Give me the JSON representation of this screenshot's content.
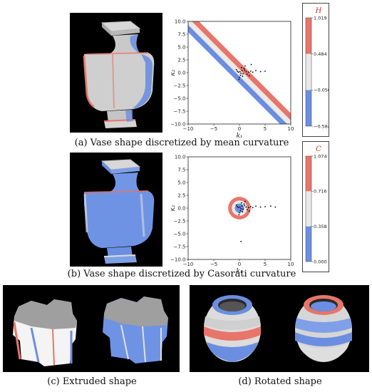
{
  "panels": {
    "a": {
      "caption": "(a)  Vase shape discretized by mean curvature",
      "colorbar": {
        "symbol": "H",
        "ticks": [
          "1.019",
          "0.484",
          "−0.050",
          "−0.584"
        ]
      }
    },
    "b": {
      "caption": "(b)  Vase shape discretized by Casorati curvature",
      "colorbar": {
        "symbol": "C",
        "ticks": [
          "1.074",
          "0.716",
          "0.358",
          "0.000"
        ]
      }
    },
    "c": {
      "caption": "(c) Extruded shape"
    },
    "d": {
      "caption": "(d) Rotated shape"
    }
  },
  "colors": {
    "red": "#e8756a",
    "white": "#e9e9e9",
    "blue": "#6b8ee0",
    "gray": "#9a9a9a"
  },
  "axes": {
    "xlabel": "k₁",
    "ylabel": "k₂",
    "xticks": [
      "−10",
      "−5",
      "0",
      "5",
      "10"
    ],
    "yticks": [
      "10.0",
      "7.5",
      "5.0",
      "2.5",
      "0.0",
      "−2.5",
      "−5.0",
      "−7.5",
      "−10.0"
    ]
  },
  "chart_data": [
    {
      "type": "scatter",
      "panel": "a",
      "xlabel": "k₁",
      "ylabel": "k₂",
      "xlim": [
        -10,
        10
      ],
      "ylim": [
        -10,
        10
      ],
      "regions": [
        {
          "name": "red band",
          "color": "#e8756a",
          "rule": "k1 + k2 offset above diagonal"
        },
        {
          "name": "white band",
          "color": "#e9e9e9",
          "rule": "diagonal k1 + k2 ≈ 0"
        },
        {
          "name": "blue band",
          "color": "#6b8ee0",
          "rule": "k1 + k2 offset below diagonal"
        }
      ],
      "points": [
        [
          0.1,
          0.2
        ],
        [
          0.3,
          -0.1
        ],
        [
          0.5,
          0.4
        ],
        [
          -0.2,
          0.1
        ],
        [
          0.7,
          -0.2
        ],
        [
          1.0,
          0.5
        ],
        [
          1.3,
          0.2
        ],
        [
          1.8,
          0.1
        ],
        [
          2.2,
          0.3
        ],
        [
          0.2,
          -0.5
        ],
        [
          0.6,
          -0.7
        ],
        [
          -0.4,
          0.3
        ],
        [
          0.9,
          0.8
        ],
        [
          1.5,
          -0.3
        ],
        [
          2.6,
          0.1
        ],
        [
          3.2,
          0.4
        ],
        [
          4.1,
          0.2
        ],
        [
          5.0,
          0.3
        ],
        [
          -0.6,
          0.6
        ],
        [
          0.4,
          1.0
        ],
        [
          1.1,
          1.3
        ],
        [
          0.0,
          -0.9
        ],
        [
          1.9,
          -0.6
        ],
        [
          -0.1,
          -1.3
        ],
        [
          2.3,
          1.6
        ]
      ]
    },
    {
      "type": "scatter",
      "panel": "b",
      "xlabel": "k₁",
      "ylabel": "k₂",
      "xlim": [
        -10,
        10
      ],
      "ylim": [
        -10,
        10
      ],
      "regions": [
        {
          "name": "red ring",
          "color": "#e8756a"
        },
        {
          "name": "white ring",
          "color": "#e9e9e9"
        },
        {
          "name": "blue disk",
          "color": "#6b8ee0"
        }
      ],
      "points": [
        [
          0.1,
          0.2
        ],
        [
          0.3,
          -0.1
        ],
        [
          0.5,
          0.4
        ],
        [
          -0.2,
          0.1
        ],
        [
          0.7,
          -0.2
        ],
        [
          1.0,
          0.5
        ],
        [
          1.3,
          0.2
        ],
        [
          1.8,
          0.1
        ],
        [
          2.2,
          0.3
        ],
        [
          0.2,
          -0.5
        ],
        [
          0.6,
          -0.7
        ],
        [
          -0.4,
          0.3
        ],
        [
          0.9,
          0.8
        ],
        [
          1.5,
          -0.3
        ],
        [
          2.6,
          0.1
        ],
        [
          3.2,
          0.4
        ],
        [
          4.1,
          0.2
        ],
        [
          5.0,
          0.3
        ],
        [
          6.1,
          0.4
        ],
        [
          7.0,
          0.2
        ],
        [
          -0.6,
          0.6
        ],
        [
          0.4,
          1.0
        ],
        [
          1.1,
          1.3
        ],
        [
          0.0,
          -0.9
        ],
        [
          1.9,
          -0.6
        ],
        [
          -0.1,
          -1.3
        ],
        [
          0.3,
          -6.5
        ]
      ]
    }
  ]
}
